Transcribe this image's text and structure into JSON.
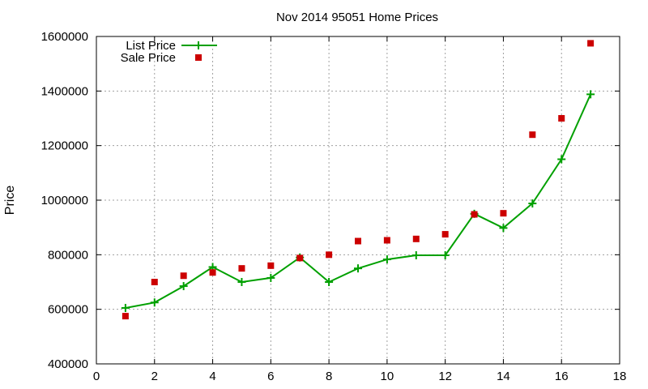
{
  "chart_data": {
    "type": "line",
    "title": "Nov 2014 95051 Home Prices",
    "xlabel": "",
    "ylabel": "Price",
    "xlim": [
      0,
      18
    ],
    "ylim": [
      400000,
      1600000
    ],
    "x_ticks": [
      0,
      2,
      4,
      6,
      8,
      10,
      12,
      14,
      16,
      18
    ],
    "y_ticks": [
      400000,
      600000,
      800000,
      1000000,
      1200000,
      1400000,
      1600000
    ],
    "grid": true,
    "legend_position": "top-left",
    "series": [
      {
        "name": "List Price",
        "style": "line+cross",
        "color": "#00a000",
        "x": [
          1,
          2,
          3,
          4,
          5,
          6,
          7,
          8,
          9,
          10,
          11,
          12,
          13,
          14,
          15,
          16,
          17
        ],
        "y": [
          605000,
          625000,
          685000,
          755000,
          700000,
          715000,
          790000,
          700000,
          750000,
          783000,
          798000,
          798000,
          950000,
          898000,
          988000,
          1150000,
          1388000
        ]
      },
      {
        "name": "Sale Price",
        "style": "square-points",
        "color": "#cc0000",
        "x": [
          1,
          2,
          3,
          4,
          5,
          6,
          7,
          8,
          9,
          10,
          11,
          12,
          13,
          14,
          15,
          16,
          17
        ],
        "y": [
          575000,
          700000,
          723000,
          735000,
          750000,
          760000,
          788000,
          800000,
          850000,
          853000,
          858000,
          875000,
          948000,
          952000,
          1240000,
          1300000,
          1575000
        ]
      }
    ]
  }
}
